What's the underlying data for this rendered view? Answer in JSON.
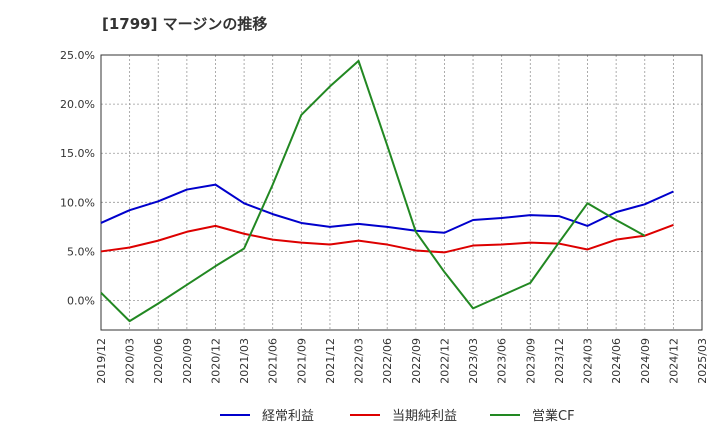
{
  "title": "[1799]  マージンの推移",
  "chart_data": {
    "type": "line",
    "title": "[1799]  マージンの推移",
    "xlabel": "",
    "ylabel": "",
    "ylim": [
      -3,
      25
    ],
    "y_ticks": [
      "25.0%",
      "20.0%",
      "15.0%",
      "10.0%",
      "5.0%",
      "0.0%"
    ],
    "y_tick_values": [
      25,
      20,
      15,
      10,
      5,
      0
    ],
    "grid": true,
    "legend_position": "bottom",
    "x": [
      "2019/12",
      "2020/03",
      "2020/06",
      "2020/09",
      "2020/12",
      "2021/03",
      "2021/06",
      "2021/09",
      "2021/12",
      "2022/03",
      "2022/06",
      "2022/09",
      "2022/12",
      "2023/03",
      "2023/06",
      "2023/09",
      "2023/12",
      "2024/03",
      "2024/06",
      "2024/09",
      "2024/12",
      "2025/03"
    ],
    "series": [
      {
        "name": "経常利益",
        "color": "#0000cc",
        "values": [
          7.9,
          9.2,
          10.1,
          11.3,
          11.8,
          9.9,
          8.8,
          7.9,
          7.5,
          7.8,
          7.5,
          7.1,
          6.9,
          8.2,
          8.4,
          8.7,
          8.6,
          7.6,
          9.0,
          9.8,
          11.1,
          null
        ]
      },
      {
        "name": "当期純利益",
        "color": "#dd0000",
        "values": [
          5.0,
          5.4,
          6.1,
          7.0,
          7.6,
          6.8,
          6.2,
          5.9,
          5.7,
          6.1,
          5.7,
          5.1,
          4.9,
          5.6,
          5.7,
          5.9,
          5.8,
          5.2,
          6.2,
          6.6,
          7.7,
          null
        ]
      },
      {
        "name": "営業CF",
        "color": "#228822",
        "values": [
          0.8,
          -2.1,
          -0.3,
          1.6,
          3.5,
          5.3,
          11.8,
          18.9,
          21.8,
          24.4,
          15.8,
          7.0,
          2.9,
          -0.8,
          0.5,
          1.8,
          5.9,
          9.9,
          8.2,
          6.6,
          null,
          null
        ]
      }
    ]
  }
}
